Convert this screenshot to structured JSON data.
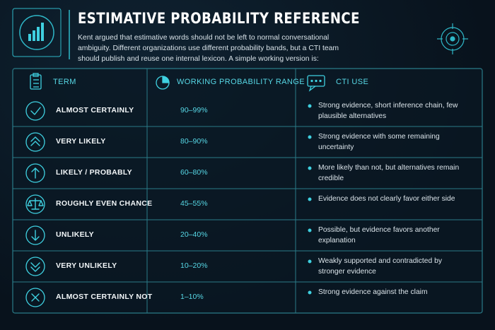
{
  "header": {
    "title": "ESTIMATIVE PROBABILITY REFERENCE",
    "description": "Kent argued that estimative words should not be left to normal conversational ambiguity. Different organizations use different probability bands, but a CTI team should publish and reuse one internal lexicon. A simple working version is:"
  },
  "table": {
    "headers": [
      "TERM",
      "WORKING PROBABILITY RANGE",
      "CTI USE"
    ],
    "rows": [
      [
        "ALMOST CERTAINLY",
        "90–99%",
        "Strong evidence, short inference chain, few plausible alternatives"
      ],
      [
        "VERY LIKELY",
        "80–90%",
        "Strong evidence with some remaining uncertainty"
      ],
      [
        "LIKELY / PROBABLY",
        "60–80%",
        "More likely than not, but alternatives remain credible"
      ],
      [
        "ROUGHLY EVEN CHANCE",
        "45–55%",
        "Evidence does not clearly favor either side"
      ],
      [
        "UNLIKELY",
        "20–40%",
        "Possible, but evidence favors another explanation"
      ],
      [
        "VERY UNLIKELY",
        "10–20%",
        "Weakly supported and contradicted by stronger evidence"
      ],
      [
        "ALMOST CERTAINLY NOT",
        "1–10%",
        "Strong evidence against the claim"
      ]
    ]
  }
}
